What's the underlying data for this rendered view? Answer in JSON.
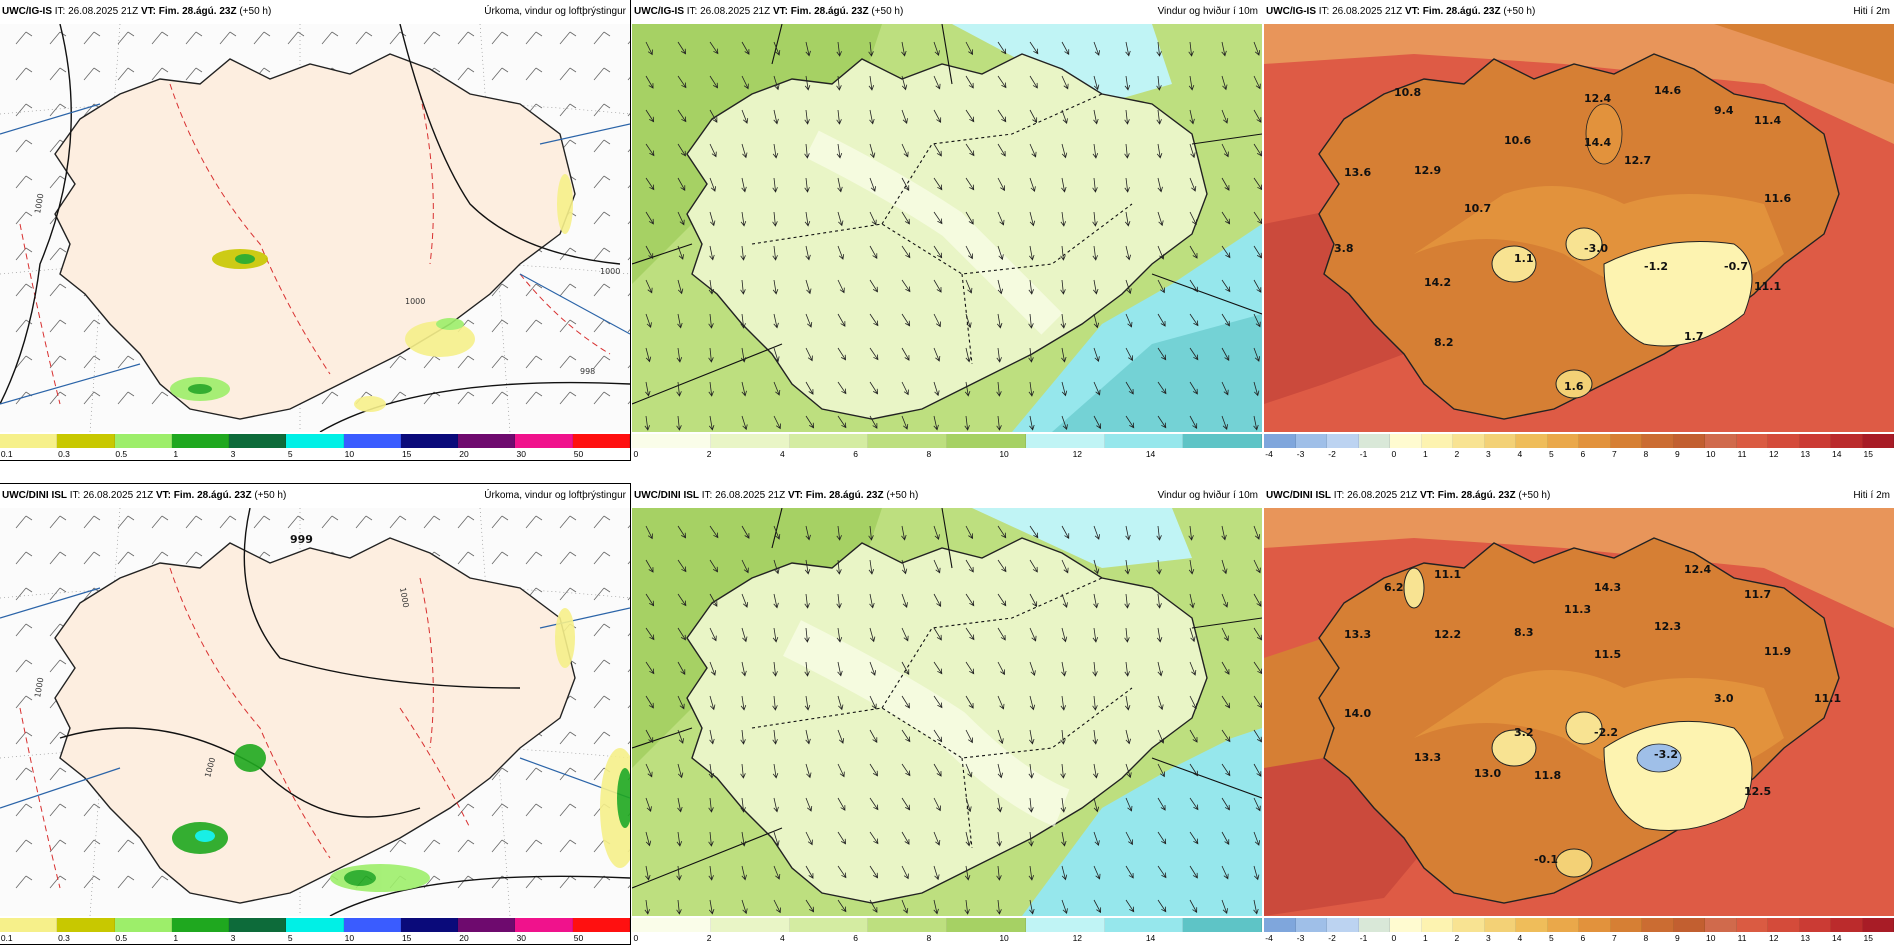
{
  "rows": [
    {
      "model": "UWC/IG-IS",
      "it_label": "IT:",
      "it": "26.08.2025 21Z",
      "vt_label": "VT:",
      "vt": "Fim. 28.ágú. 23Z",
      "lead": "(+50 h)",
      "panels": [
        {
          "title": "Úrkoma, vindur og loftþrýstingur"
        },
        {
          "title": "Vindur og hviður í 10m"
        },
        {
          "title": "Hiti í 2m"
        }
      ],
      "temp_labels": [
        "10.8",
        "12.4",
        "14.6",
        "9.4",
        "11.4",
        "10.6",
        "14.4",
        "12.7",
        "13.6",
        "12.9",
        "10.7",
        "11.6",
        "3.8",
        "1.1",
        "-3.0",
        "-1.2",
        "-0.7",
        "14.2",
        "11.1",
        "8.2",
        "1.7",
        "1.6"
      ],
      "pressure_labels": [
        "1000",
        "1000",
        "1000",
        "998"
      ]
    },
    {
      "model": "UWC/DINI ISL",
      "it_label": "IT:",
      "it": "26.08.2025 21Z",
      "vt_label": "VT:",
      "vt": "Fim. 28.ágú. 23Z",
      "lead": "(+50 h)",
      "panels": [
        {
          "title": "Úrkoma, vindur og loftþrýstingur"
        },
        {
          "title": "Vindur og hviður í 10m"
        },
        {
          "title": "Hiti í 2m"
        }
      ],
      "temp_labels": [
        "6.2",
        "11.1",
        "12.4",
        "14.3",
        "11.7",
        "13.3",
        "12.2",
        "8.3",
        "11.3",
        "12.3",
        "11.5",
        "11.9",
        "14.0",
        "3.2",
        "-2.2",
        "-3.2",
        "3.0",
        "11.1",
        "13.3",
        "13.0",
        "11.8",
        "12.5",
        "-0.1"
      ],
      "pressure_labels": [
        "999",
        "1000",
        "1000",
        "1000"
      ]
    }
  ],
  "colorbars": {
    "precip": {
      "ticks": [
        "0.1",
        "0.3",
        "0.5",
        "1",
        "3",
        "5",
        "10",
        "15",
        "20",
        "30",
        "50"
      ],
      "colors": [
        "#f6f08a",
        "#c8c800",
        "#9dee6a",
        "#1fa81f",
        "#0d6b3a",
        "#00f0e6",
        "#3a5cff",
        "#0a0a7a",
        "#6e0a6e",
        "#f0128c",
        "#ff1010"
      ]
    },
    "wind": {
      "ticks": [
        "0",
        "2",
        "4",
        "6",
        "8",
        "10",
        "12",
        "14"
      ],
      "colors": [
        "#fafde9",
        "#e9f5c6",
        "#d4eca2",
        "#bddf7f",
        "#a6d164",
        "#c0f4f5",
        "#96e7ec",
        "#5ec4c6"
      ]
    },
    "temp": {
      "ticks": [
        "-4",
        "-3",
        "-2",
        "-1",
        "0",
        "1",
        "2",
        "3",
        "4",
        "5",
        "6",
        "7",
        "8",
        "9",
        "10",
        "11",
        "12",
        "13",
        "14",
        "15"
      ],
      "colors": [
        "#7fa6dc",
        "#9fbfe8",
        "#bcd3f1",
        "#d9e8d8",
        "#fffbd0",
        "#fdf3b0",
        "#f8e392",
        "#f3d176",
        "#efbd5a",
        "#eaa84a",
        "#e2923c",
        "#d67f34",
        "#cb6c32",
        "#c25f30",
        "#d06a4c",
        "#da5b42",
        "#d44b3a",
        "#cb3b34",
        "#bb2b2c",
        "#a81c26"
      ]
    }
  }
}
